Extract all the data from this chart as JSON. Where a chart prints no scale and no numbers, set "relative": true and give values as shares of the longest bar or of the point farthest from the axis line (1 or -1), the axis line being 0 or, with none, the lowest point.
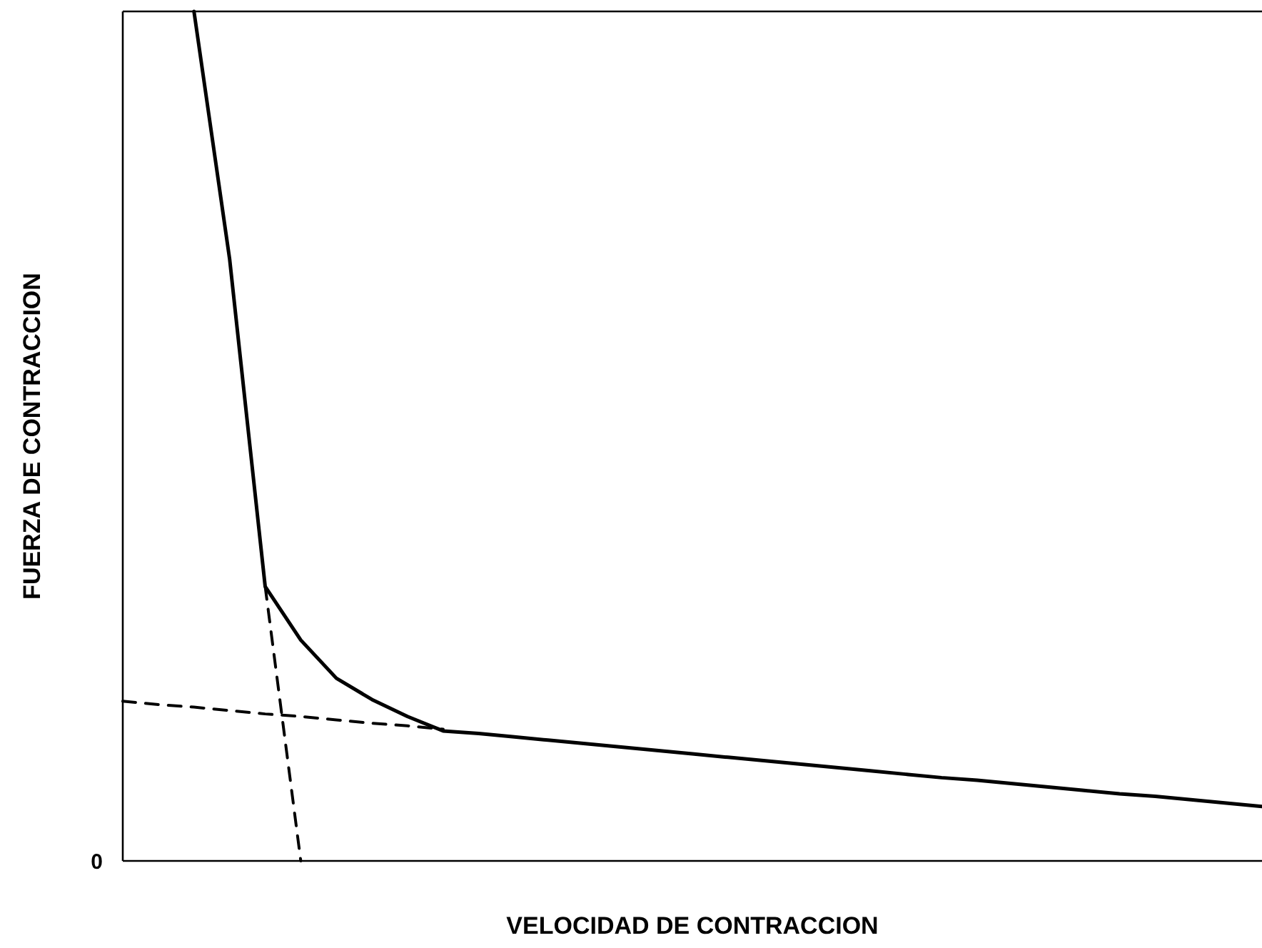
{
  "chart_data": {
    "type": "line",
    "relative": true,
    "xlabel": "VELOCIDAD DE CONTRACCION",
    "ylabel": "FUERZA DE CONTRACCION",
    "annotations": [
      "0"
    ],
    "categories": [
      null,
      null,
      null,
      null,
      null,
      null,
      null,
      null,
      null,
      null,
      null,
      null,
      null,
      null,
      null,
      null,
      null,
      null,
      null,
      null,
      null,
      null,
      null,
      null,
      null,
      null,
      null,
      null,
      null,
      null,
      null,
      null,
      null
    ],
    "series": [
      {
        "color": "#000000",
        "line_style": "solid",
        "values": [
          null,
          null,
          1.0,
          0.709,
          0.323,
          0.26,
          0.215,
          0.19,
          0.17,
          0.153,
          0.15,
          0.146,
          0.142,
          0.138,
          0.134,
          0.13,
          0.126,
          0.122,
          0.118,
          0.114,
          0.11,
          0.106,
          0.102,
          0.098,
          0.095,
          0.091,
          0.087,
          0.083,
          0.079,
          0.076,
          0.072,
          0.068,
          0.064
        ]
      },
      {
        "color": "#000000",
        "line_style": "dashed",
        "values": [
          null,
          null,
          null,
          null,
          0.323,
          0,
          null,
          null,
          null,
          null,
          null,
          null,
          null,
          null,
          null,
          null,
          null,
          null,
          null,
          null,
          null,
          null,
          null,
          null,
          null,
          null,
          null,
          null,
          null,
          null,
          null,
          null,
          null
        ]
      },
      {
        "color": "#000000",
        "line_style": "dashed",
        "values": [
          0.188,
          0.184,
          0.181,
          0.177,
          0.173,
          0.17,
          0.166,
          0.162,
          0.159,
          0.155,
          null,
          null,
          null,
          null,
          null,
          null,
          null,
          null,
          null,
          null,
          null,
          null,
          null,
          null,
          null,
          null,
          null,
          null,
          null,
          null,
          null,
          null,
          null
        ]
      }
    ]
  }
}
